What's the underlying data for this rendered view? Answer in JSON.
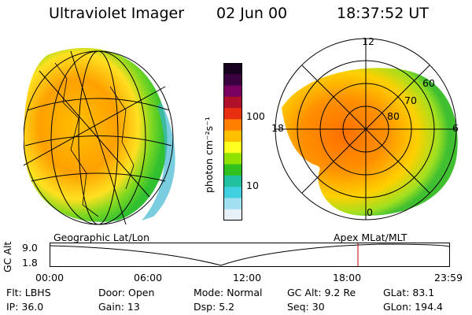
{
  "header": {
    "instrument": "Ultraviolet Imager",
    "date": "02 Jun 00",
    "time": "18:37:52 UT"
  },
  "colorbar": {
    "unit_label": "photon cm⁻²s⁻¹",
    "ticks": [
      "100",
      "10"
    ],
    "colors": [
      "#1a0020",
      "#3a0040",
      "#7a0060",
      "#b0102a",
      "#e83010",
      "#ff8000",
      "#ffc000",
      "#ffff20",
      "#90e000",
      "#30c020",
      "#20c0a0",
      "#40d0e0",
      "#a0e0f0",
      "#e8f0f8"
    ]
  },
  "polar_plot": {
    "mlt_labels": {
      "top": "12",
      "left": "18",
      "right": "6",
      "bottom": "0"
    },
    "lat_labels": [
      "60",
      "70",
      "80"
    ]
  },
  "left_globe_label": "Geographic Lat/Lon",
  "right_polar_label": "Apex MLat/MLT",
  "timeline": {
    "ylabel": "GC Alt",
    "y_ticks": [
      "9.0",
      "1.8"
    ],
    "x_ticks": [
      "00:00",
      "06:00",
      "12:00",
      "18:00",
      "23:59"
    ],
    "marker_color": "#c00000"
  },
  "info": {
    "flt": "Flt: LBHS",
    "door": "Door: Open",
    "mode": "Mode: Normal",
    "gc_alt": "GC Alt: 9.2 Re",
    "glat": "GLat:  83.1",
    "ip": "IP: 36.0",
    "gain": "Gain: 13",
    "dsp": "Dsp:     5.2",
    "seq": "Seq: 30",
    "glon": "GLon: 194.4"
  }
}
